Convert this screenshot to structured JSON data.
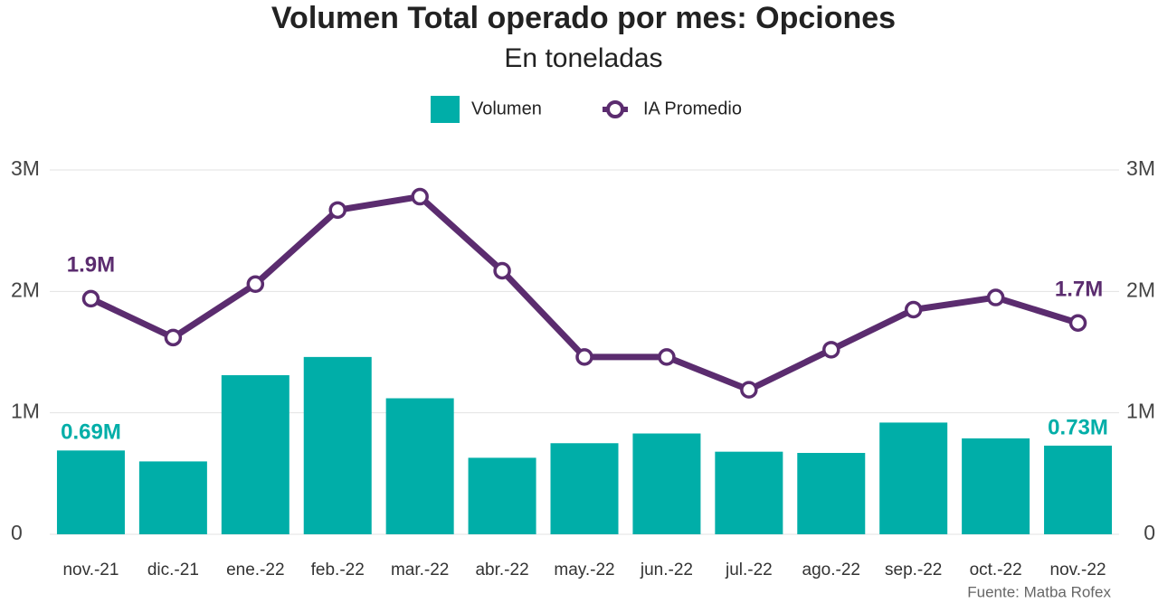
{
  "chart_data": {
    "type": "bar_line",
    "title": "Volumen Total operado por mes: Opciones",
    "subtitle": "En toneladas",
    "source": "Fuente: Matba Rofex",
    "categories": [
      "nov.-21",
      "dic.-21",
      "ene.-22",
      "feb.-22",
      "mar.-22",
      "abr.-22",
      "may.-22",
      "jun.-22",
      "jul.-22",
      "ago.-22",
      "sep.-22",
      "oct.-22",
      "nov.-22"
    ],
    "series": [
      {
        "name": "Volumen",
        "type": "bar",
        "color": "#00aea8",
        "values": [
          690000,
          600000,
          1310000,
          1460000,
          1120000,
          630000,
          750000,
          830000,
          680000,
          670000,
          920000,
          790000,
          730000
        ],
        "value_labels": [
          "0.69M",
          null,
          null,
          null,
          null,
          null,
          null,
          null,
          null,
          null,
          null,
          null,
          "0.73M"
        ]
      },
      {
        "name": "IA Promedio",
        "type": "line",
        "axis": "y2",
        "color": "#5b2c6f",
        "values": [
          1940000,
          1620000,
          2060000,
          2670000,
          2780000,
          2170000,
          1460000,
          1460000,
          1190000,
          1520000,
          1850000,
          1950000,
          1740000
        ],
        "value_labels": [
          "1.9M",
          null,
          null,
          null,
          null,
          null,
          null,
          null,
          null,
          null,
          null,
          null,
          "1.7M"
        ]
      }
    ],
    "ylim": [
      0,
      3000000
    ],
    "yticks": [
      0,
      {
        "value": 1000000,
        "label": "1M"
      },
      {
        "value": 2000000,
        "label": "2M"
      },
      {
        "value": 3000000,
        "label": "3M"
      }
    ],
    "y2lim": [
      0,
      3000000
    ],
    "y2ticks": [
      0,
      {
        "value": 1000000,
        "label": "1M"
      },
      {
        "value": 2000000,
        "label": "2M"
      },
      {
        "value": 3000000,
        "label": "3M"
      }
    ],
    "grid": true,
    "legend": "top"
  }
}
